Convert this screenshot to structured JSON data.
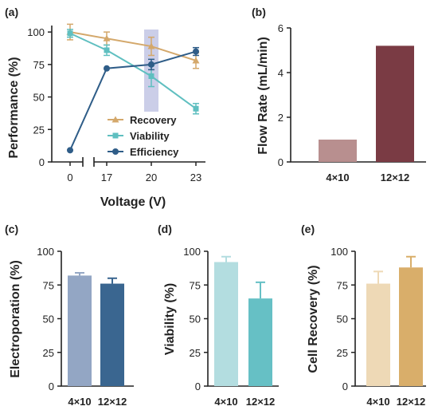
{
  "chart_data": [
    {
      "panel": "(a)",
      "type": "line",
      "xlabel": "Voltage (V)",
      "ylabel": "Performance (%)",
      "x_ticks": [
        "0",
        "17",
        "20",
        "23"
      ],
      "y_ticks": [
        "0",
        "25",
        "50",
        "75",
        "100"
      ],
      "ylim": [
        0,
        105
      ],
      "x_axis_break": true,
      "highlight_x": "20",
      "legend": "bottom-center",
      "series": [
        {
          "name": "Recovery",
          "color": "#d4a86b",
          "marker": "triangle",
          "values": [
            100,
            95,
            89,
            78
          ],
          "err": [
            6,
            5,
            7,
            6
          ]
        },
        {
          "name": "Viability",
          "color": "#5fbfc0",
          "marker": "square",
          "values": [
            99,
            86,
            66,
            41
          ],
          "err": [
            3,
            4,
            8,
            4
          ]
        },
        {
          "name": "Efficiency",
          "color": "#2f5d88",
          "marker": "circle",
          "values": [
            9,
            72,
            75,
            85
          ],
          "err": [
            0,
            0,
            4,
            3
          ]
        }
      ]
    },
    {
      "panel": "(b)",
      "type": "bar",
      "categories": [
        "4×10",
        "12×12"
      ],
      "values": [
        1.0,
        5.2
      ],
      "colors": [
        "#b88f8f",
        "#7a3b44"
      ],
      "ylabel": "Flow Rate (mL/min)",
      "y_ticks": [
        "0",
        "2",
        "4",
        "6"
      ],
      "ylim": [
        0,
        6
      ]
    },
    {
      "panel": "(c)",
      "type": "bar",
      "categories": [
        "4×10",
        "12×12"
      ],
      "values": [
        82,
        76
      ],
      "err": [
        2,
        4
      ],
      "colors": [
        "#93a6c4",
        "#3a6690"
      ],
      "ylabel": "Electroporation (%)",
      "y_ticks": [
        "0",
        "25",
        "50",
        "75",
        "100"
      ],
      "ylim": [
        0,
        100
      ]
    },
    {
      "panel": "(d)",
      "type": "bar",
      "categories": [
        "4×10",
        "12×12"
      ],
      "values": [
        92,
        65
      ],
      "err": [
        4,
        12
      ],
      "colors": [
        "#b3dde0",
        "#66c0c5"
      ],
      "ylabel": "Viability (%)",
      "y_ticks": [
        "0",
        "25",
        "50",
        "75",
        "100"
      ],
      "ylim": [
        0,
        100
      ]
    },
    {
      "panel": "(e)",
      "type": "bar",
      "categories": [
        "4×10",
        "12×12"
      ],
      "values": [
        76,
        88
      ],
      "err": [
        9,
        8
      ],
      "colors": [
        "#eed9b6",
        "#d9ae6a"
      ],
      "ylabel": "Cell Recovery (%)",
      "y_ticks": [
        "0",
        "25",
        "50",
        "75",
        "100"
      ],
      "ylim": [
        0,
        100
      ]
    }
  ]
}
